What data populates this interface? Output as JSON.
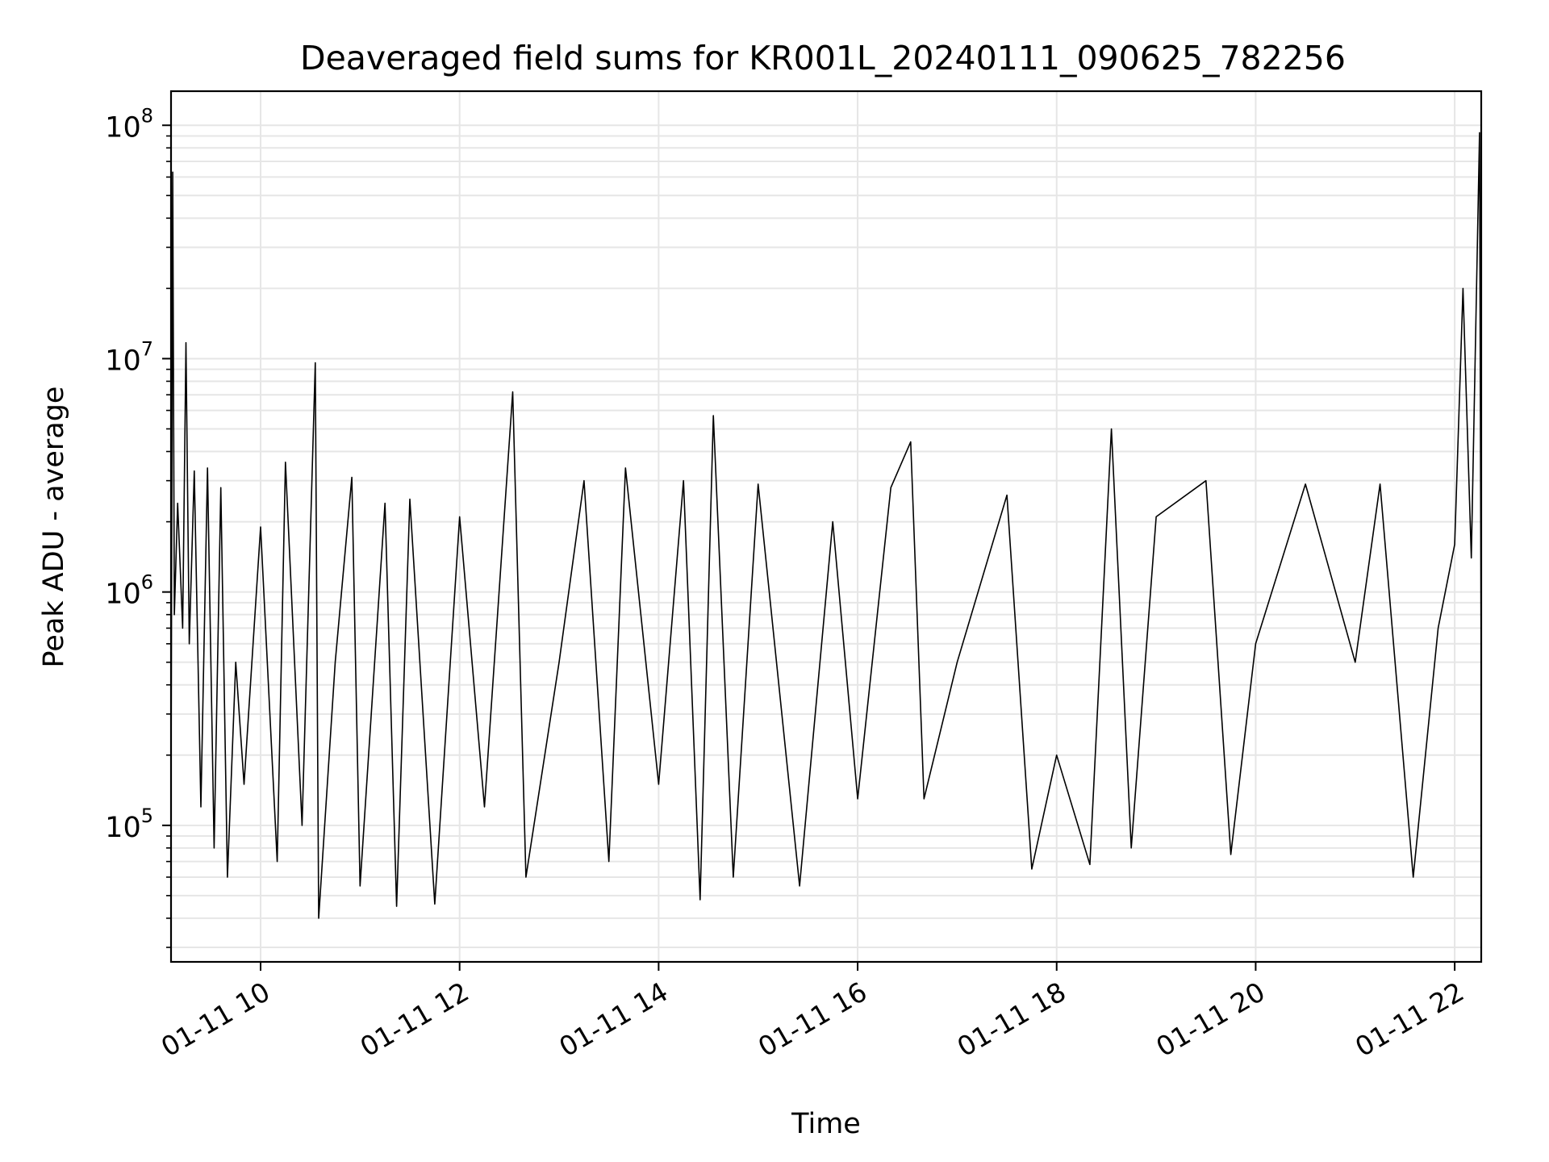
{
  "chart_data": {
    "type": "line",
    "title": "Deaveraged field sums for KR001L_20240111_090625_782256",
    "xlabel": "Time",
    "ylabel": "Peak ADU - average",
    "x_scale": "time",
    "y_scale": "log",
    "xlim": [
      "2024-01-11 09:06",
      "2024-01-11 22:16"
    ],
    "ylim": [
      26000,
      140000000
    ],
    "x_ticks": [
      {
        "value": "2024-01-11 10:00",
        "label": "01-11 10"
      },
      {
        "value": "2024-01-11 12:00",
        "label": "01-11 12"
      },
      {
        "value": "2024-01-11 14:00",
        "label": "01-11 14"
      },
      {
        "value": "2024-01-11 16:00",
        "label": "01-11 16"
      },
      {
        "value": "2024-01-11 18:00",
        "label": "01-11 18"
      },
      {
        "value": "2024-01-11 20:00",
        "label": "01-11 20"
      },
      {
        "value": "2024-01-11 22:00",
        "label": "01-11 22"
      }
    ],
    "y_ticks": [
      {
        "value": 100000,
        "base": "10",
        "exp": "5"
      },
      {
        "value": 1000000,
        "base": "10",
        "exp": "6"
      },
      {
        "value": 10000000,
        "base": "10",
        "exp": "7"
      },
      {
        "value": 100000000,
        "base": "10",
        "exp": "8"
      }
    ],
    "grid": true,
    "line_color": "#000000",
    "grid_color": "#e6e6e6",
    "series": [
      {
        "points": [
          [
            "2024-01-11 09:06",
            150000
          ],
          [
            "2024-01-11 09:07",
            63000000
          ],
          [
            "2024-01-11 09:08",
            800000
          ],
          [
            "2024-01-11 09:10",
            2400000
          ],
          [
            "2024-01-11 09:13",
            700000
          ],
          [
            "2024-01-11 09:15",
            11700000
          ],
          [
            "2024-01-11 09:17",
            600000
          ],
          [
            "2024-01-11 09:20",
            3300000
          ],
          [
            "2024-01-11 09:24",
            120000
          ],
          [
            "2024-01-11 09:28",
            3400000
          ],
          [
            "2024-01-11 09:32",
            80000
          ],
          [
            "2024-01-11 09:36",
            2800000
          ],
          [
            "2024-01-11 09:40",
            60000
          ],
          [
            "2024-01-11 09:45",
            500000
          ],
          [
            "2024-01-11 09:50",
            150000
          ],
          [
            "2024-01-11 10:00",
            1900000
          ],
          [
            "2024-01-11 10:10",
            70000
          ],
          [
            "2024-01-11 10:15",
            3600000
          ],
          [
            "2024-01-11 10:25",
            100000
          ],
          [
            "2024-01-11 10:33",
            9600000
          ],
          [
            "2024-01-11 10:35",
            40000
          ],
          [
            "2024-01-11 10:45",
            500000
          ],
          [
            "2024-01-11 10:55",
            3100000
          ],
          [
            "2024-01-11 11:00",
            55000
          ],
          [
            "2024-01-11 11:15",
            2400000
          ],
          [
            "2024-01-11 11:22",
            45000
          ],
          [
            "2024-01-11 11:30",
            2500000
          ],
          [
            "2024-01-11 11:45",
            46000
          ],
          [
            "2024-01-11 12:00",
            2100000
          ],
          [
            "2024-01-11 12:15",
            120000
          ],
          [
            "2024-01-11 12:32",
            7200000
          ],
          [
            "2024-01-11 12:40",
            60000
          ],
          [
            "2024-01-11 13:00",
            500000
          ],
          [
            "2024-01-11 13:15",
            3000000
          ],
          [
            "2024-01-11 13:30",
            70000
          ],
          [
            "2024-01-11 13:40",
            3400000
          ],
          [
            "2024-01-11 14:00",
            150000
          ],
          [
            "2024-01-11 14:15",
            3000000
          ],
          [
            "2024-01-11 14:25",
            48000
          ],
          [
            "2024-01-11 14:33",
            5700000
          ],
          [
            "2024-01-11 14:45",
            60000
          ],
          [
            "2024-01-11 15:00",
            2900000
          ],
          [
            "2024-01-11 15:25",
            55000
          ],
          [
            "2024-01-11 15:45",
            2000000
          ],
          [
            "2024-01-11 16:00",
            130000
          ],
          [
            "2024-01-11 16:20",
            2800000
          ],
          [
            "2024-01-11 16:32",
            4400000
          ],
          [
            "2024-01-11 16:40",
            130000
          ],
          [
            "2024-01-11 17:00",
            500000
          ],
          [
            "2024-01-11 17:30",
            2600000
          ],
          [
            "2024-01-11 17:45",
            65000
          ],
          [
            "2024-01-11 18:00",
            200000
          ],
          [
            "2024-01-11 18:20",
            68000
          ],
          [
            "2024-01-11 18:33",
            5000000
          ],
          [
            "2024-01-11 18:45",
            80000
          ],
          [
            "2024-01-11 19:00",
            2100000
          ],
          [
            "2024-01-11 19:30",
            3000000
          ],
          [
            "2024-01-11 19:45",
            75000
          ],
          [
            "2024-01-11 20:00",
            600000
          ],
          [
            "2024-01-11 20:30",
            2900000
          ],
          [
            "2024-01-11 21:00",
            500000
          ],
          [
            "2024-01-11 21:15",
            2900000
          ],
          [
            "2024-01-11 21:35",
            60000
          ],
          [
            "2024-01-11 21:50",
            700000
          ],
          [
            "2024-01-11 22:00",
            1600000
          ],
          [
            "2024-01-11 22:05",
            20000000
          ],
          [
            "2024-01-11 22:10",
            1400000
          ],
          [
            "2024-01-11 22:15",
            93000000
          ],
          [
            "2024-01-11 22:16",
            400000
          ]
        ]
      }
    ]
  }
}
